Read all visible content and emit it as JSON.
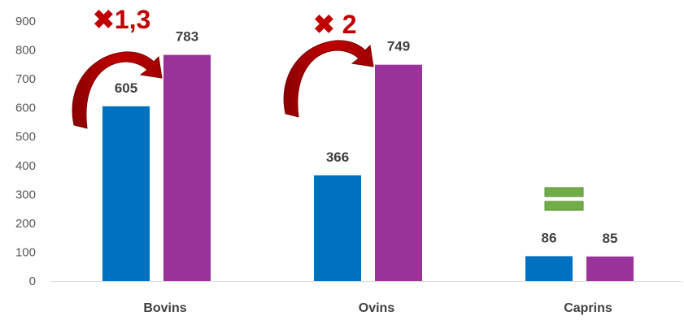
{
  "chart_data": {
    "type": "bar",
    "categories": [
      "Bovins",
      "Ovins",
      "Caprins"
    ],
    "series": [
      {
        "values": [
          605,
          366,
          86
        ],
        "color": "#0070C0"
      },
      {
        "values": [
          783,
          749,
          85
        ],
        "color": "#993399"
      }
    ],
    "ylim": [
      0,
      900
    ],
    "yticks": [
      0,
      100,
      200,
      300,
      400,
      500,
      600,
      700,
      800,
      900
    ],
    "grid": true,
    "legend": "none",
    "annotations": [
      {
        "text": "✖1,3",
        "category": "Bovins",
        "color": "#C00000",
        "icon": "curved-arrow-icon"
      },
      {
        "text": "✖ 2",
        "category": "Ovins",
        "color": "#C00000",
        "icon": "curved-arrow-icon"
      },
      {
        "text": "",
        "category": "Caprins",
        "color": "#70AD47",
        "icon": "equals-icon"
      }
    ]
  },
  "colors": {
    "axis": "#D9D9D9",
    "tick_text": "#595959",
    "label_text": "#404040",
    "arrow": "#C00000",
    "equals": "#70AD47"
  }
}
